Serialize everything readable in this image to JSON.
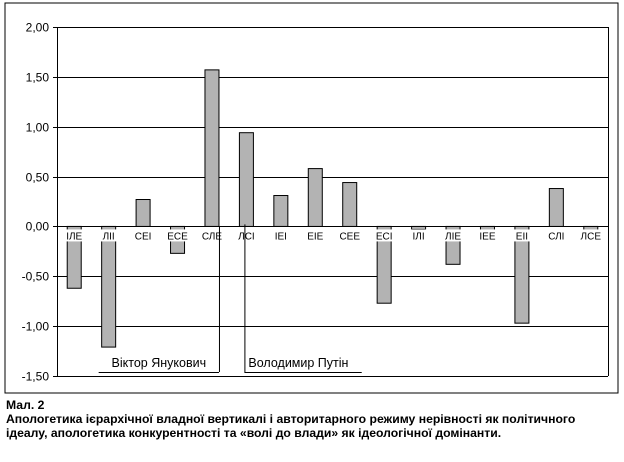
{
  "chart_data": {
    "type": "bar",
    "categories": [
      "ІЛЕ",
      "ЛІІ",
      "СЕІ",
      "ЕСЕ",
      "СЛЕ",
      "ЛСІ",
      "ІЕІ",
      "ЕІЕ",
      "СЕЕ",
      "ЕСІ",
      "ІЛІ",
      "ЛІЕ",
      "ІЕЕ",
      "ЕІІ",
      "СЛІ",
      "ЛСЕ"
    ],
    "values": [
      -0.62,
      -1.21,
      0.27,
      -0.27,
      1.57,
      0.94,
      0.31,
      0.58,
      0.44,
      -0.77,
      -0.03,
      -0.38,
      -0.11,
      -0.97,
      0.38,
      -0.11
    ],
    "ylim": [
      -1.5,
      2.0
    ],
    "yticks": [
      "-1,50",
      "-1,00",
      "-0,50",
      "0,00",
      "0,50",
      "1,00",
      "1,50",
      "2,00"
    ],
    "ytick_values": [
      -1.5,
      -1.0,
      -0.5,
      0.0,
      0.5,
      1.0,
      1.5,
      2.0
    ],
    "grid": true,
    "bar_color": "#b3b3b3",
    "annotations": [
      {
        "text": "Віктор Янукович",
        "category": "ЛІІ",
        "ref_category": "СЛЕ"
      },
      {
        "text": "Володимир Путін",
        "category": "ЛСІ",
        "ref_category": "СЕЕ"
      }
    ]
  },
  "caption": {
    "figure_label": "Мал. 2",
    "text": "Апологетика ієрархічної владної вертикалі і авторитарного режиму нерівності як політичного ідеалу, апологетика конкурентності та «волі до влади» як ідеологічної домінанти."
  }
}
